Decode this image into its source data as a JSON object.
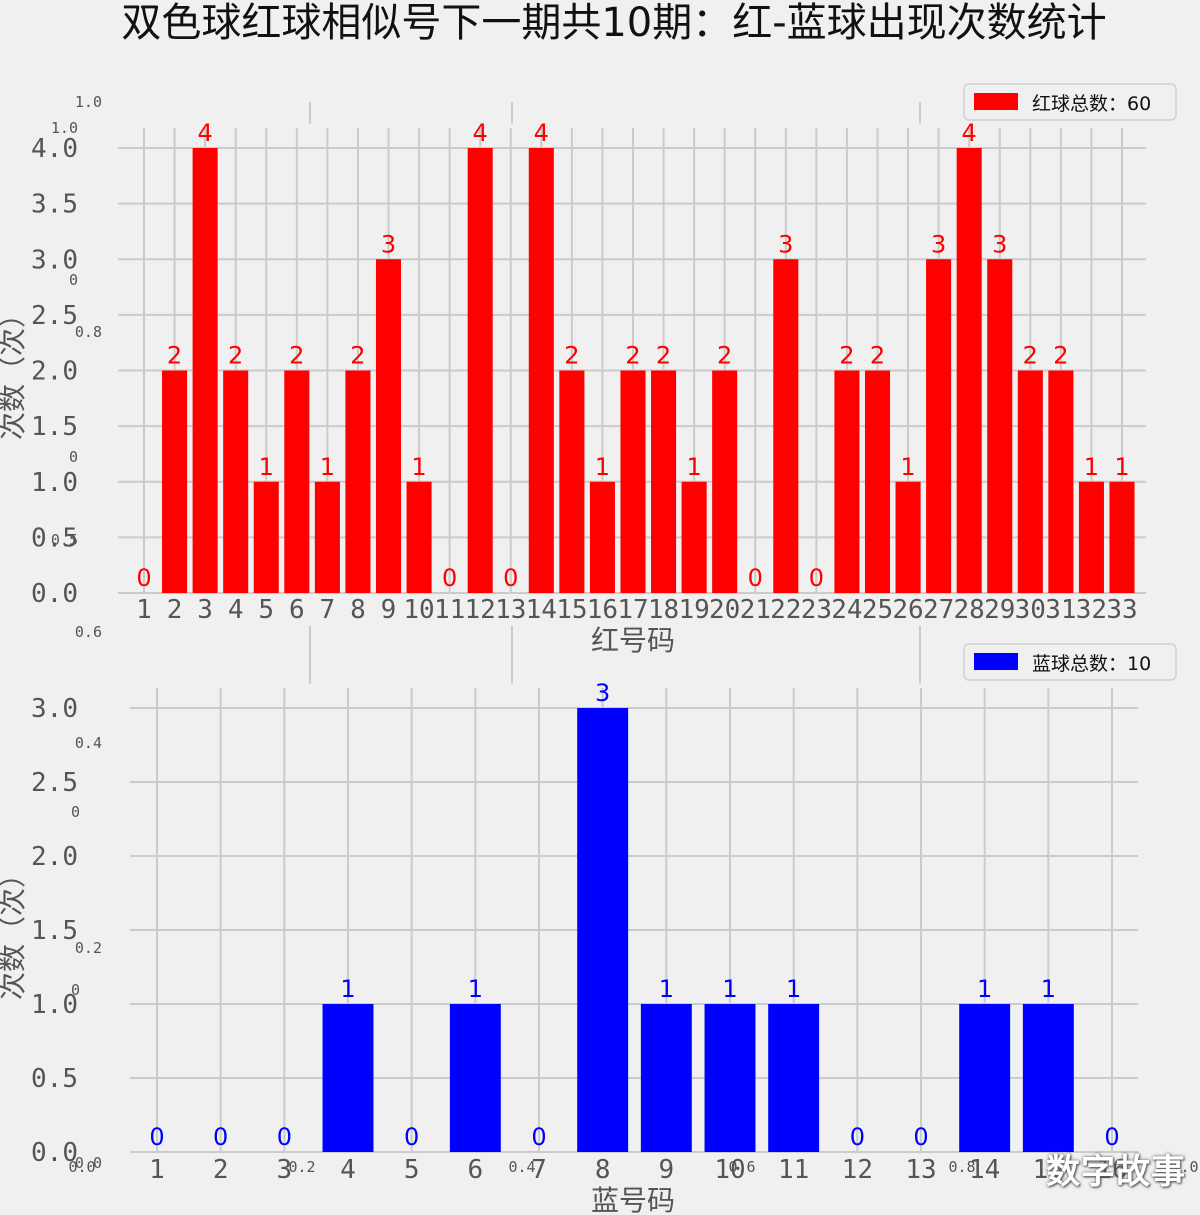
{
  "title": "双色球红球相似号下一期共10期：红-蓝球出现次数统计",
  "watermark": "数字故事",
  "colors": {
    "red": "#ff0000",
    "blue": "#0000ff",
    "background": "#f0f0f0",
    "grid": "#cbcbcb",
    "tick_text": "#555555"
  },
  "ghost_axis_ticks": {
    "outer_left": [
      "1.0",
      "0.8",
      "0.6",
      "0.4",
      "0.2",
      "0.0"
    ],
    "outer_bottom": [
      "0.0",
      "0.2",
      "0.4",
      "0.6",
      "0.8",
      "1.0"
    ],
    "upper_left": [
      "1.0",
      "0",
      "0",
      "0.5"
    ],
    "lower_left": [
      "0",
      "0"
    ]
  },
  "chart_data": [
    {
      "type": "bar",
      "title": "",
      "xlabel": "红号码",
      "ylabel": "次数（次）",
      "legend": "红球总数：60",
      "legend_position": "top-right",
      "color": "#ff0000",
      "categories": [
        "1",
        "2",
        "3",
        "4",
        "5",
        "6",
        "7",
        "8",
        "9",
        "10",
        "11",
        "12",
        "13",
        "14",
        "15",
        "16",
        "17",
        "18",
        "19",
        "20",
        "21",
        "22",
        "23",
        "24",
        "25",
        "26",
        "27",
        "28",
        "29",
        "30",
        "31",
        "32",
        "33"
      ],
      "values": [
        0,
        2,
        4,
        2,
        1,
        2,
        1,
        2,
        3,
        1,
        0,
        4,
        0,
        4,
        2,
        1,
        2,
        2,
        1,
        2,
        0,
        3,
        0,
        2,
        2,
        1,
        3,
        4,
        3,
        2,
        2,
        1,
        1
      ],
      "yticks": [
        "0.0",
        "0.5",
        "1.0",
        "1.5",
        "2.0",
        "2.5",
        "3.0",
        "3.5",
        "4.0"
      ],
      "ylim": [
        0,
        4
      ],
      "grid": true
    },
    {
      "type": "bar",
      "title": "",
      "xlabel": "蓝号码",
      "ylabel": "次数（次）",
      "legend": "蓝球总数：10",
      "legend_position": "top-right",
      "color": "#0000ff",
      "categories": [
        "1",
        "2",
        "3",
        "4",
        "5",
        "6",
        "7",
        "8",
        "9",
        "10",
        "11",
        "12",
        "13",
        "14",
        "15",
        "16"
      ],
      "values": [
        0,
        0,
        0,
        1,
        0,
        1,
        0,
        3,
        1,
        1,
        1,
        0,
        0,
        1,
        1,
        0
      ],
      "yticks": [
        "0.0",
        "0.5",
        "1.0",
        "1.5",
        "2.0",
        "2.5",
        "3.0"
      ],
      "ylim": [
        0,
        3
      ],
      "grid": true
    }
  ]
}
